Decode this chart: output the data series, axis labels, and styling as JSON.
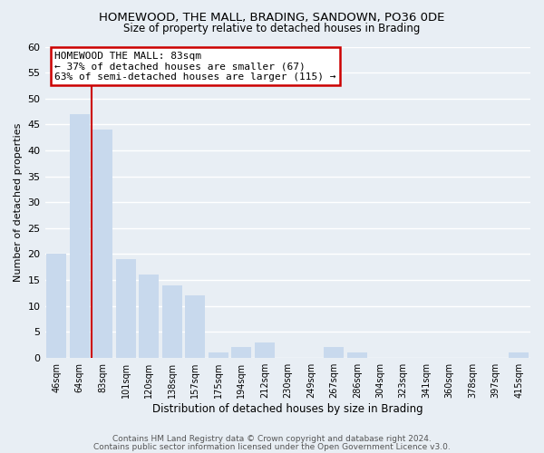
{
  "title": "HOMEWOOD, THE MALL, BRADING, SANDOWN, PO36 0DE",
  "subtitle": "Size of property relative to detached houses in Brading",
  "xlabel": "Distribution of detached houses by size in Brading",
  "ylabel": "Number of detached properties",
  "bar_labels": [
    "46sqm",
    "64sqm",
    "83sqm",
    "101sqm",
    "120sqm",
    "138sqm",
    "157sqm",
    "175sqm",
    "194sqm",
    "212sqm",
    "230sqm",
    "249sqm",
    "267sqm",
    "286sqm",
    "304sqm",
    "323sqm",
    "341sqm",
    "360sqm",
    "378sqm",
    "397sqm",
    "415sqm"
  ],
  "bar_values": [
    20,
    47,
    44,
    19,
    16,
    14,
    12,
    1,
    2,
    3,
    0,
    0,
    2,
    1,
    0,
    0,
    0,
    0,
    0,
    0,
    1
  ],
  "bar_color": "#c8d9ed",
  "redline_bar_index": 2,
  "annotation_title": "HOMEWOOD THE MALL: 83sqm",
  "annotation_line1": "← 37% of detached houses are smaller (67)",
  "annotation_line2": "63% of semi-detached houses are larger (115) →",
  "annotation_box_color": "#ffffff",
  "annotation_box_edge": "#cc0000",
  "ylim": [
    0,
    60
  ],
  "yticks": [
    0,
    5,
    10,
    15,
    20,
    25,
    30,
    35,
    40,
    45,
    50,
    55,
    60
  ],
  "footer1": "Contains HM Land Registry data © Crown copyright and database right 2024.",
  "footer2": "Contains public sector information licensed under the Open Government Licence v3.0.",
  "background_color": "#e8eef4",
  "grid_color": "#ffffff",
  "title_fontsize": 9.5,
  "subtitle_fontsize": 8.5
}
